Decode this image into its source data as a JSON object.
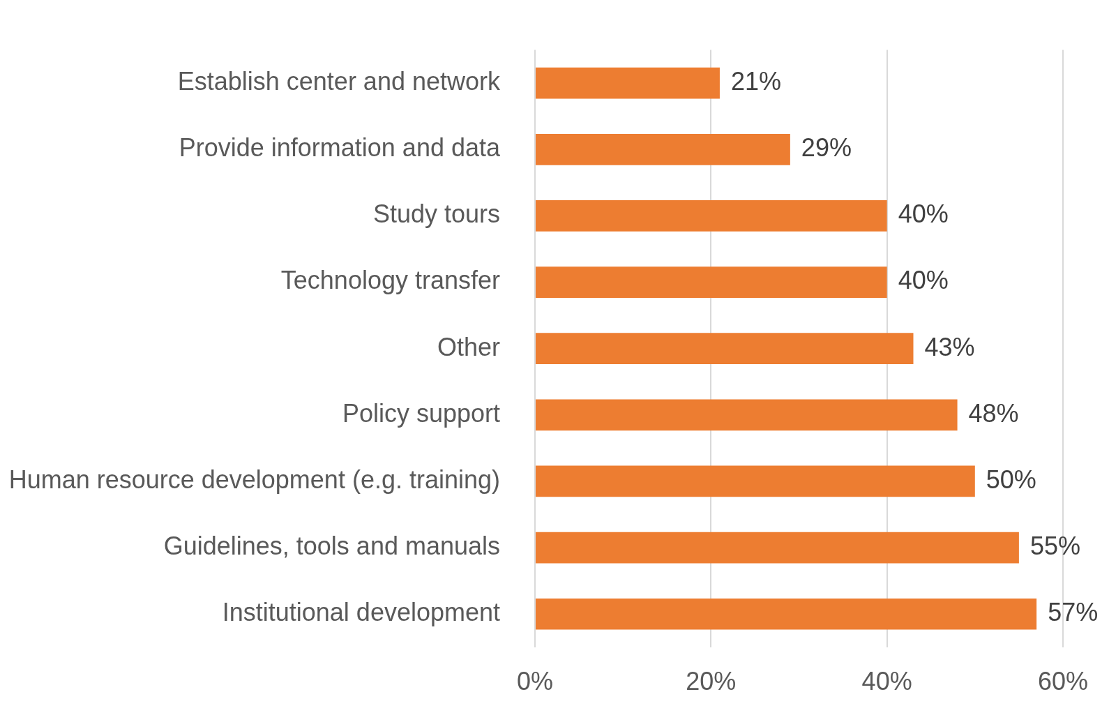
{
  "chart_data": {
    "type": "bar",
    "orientation": "horizontal",
    "categories": [
      "Establish center and network",
      "Provide information and data",
      "Study tours",
      "Technology transfer",
      "Other",
      "Policy support",
      "Human resource development (e.g. training)",
      "Guidelines, tools and manuals",
      "Institutional development"
    ],
    "values": [
      21,
      29,
      40,
      40,
      43,
      48,
      50,
      55,
      57
    ],
    "value_labels": [
      "21%",
      "29%",
      "40%",
      "40%",
      "43%",
      "48%",
      "50%",
      "55%",
      "57%"
    ],
    "color": "#ed7d31",
    "xlim": [
      0,
      60
    ],
    "xticks": [
      {
        "value": 0,
        "label": "0%"
      },
      {
        "value": 20,
        "label": "20%"
      },
      {
        "value": 40,
        "label": "40%"
      },
      {
        "value": 60,
        "label": "60%"
      }
    ],
    "grid": "x",
    "legend": false
  }
}
